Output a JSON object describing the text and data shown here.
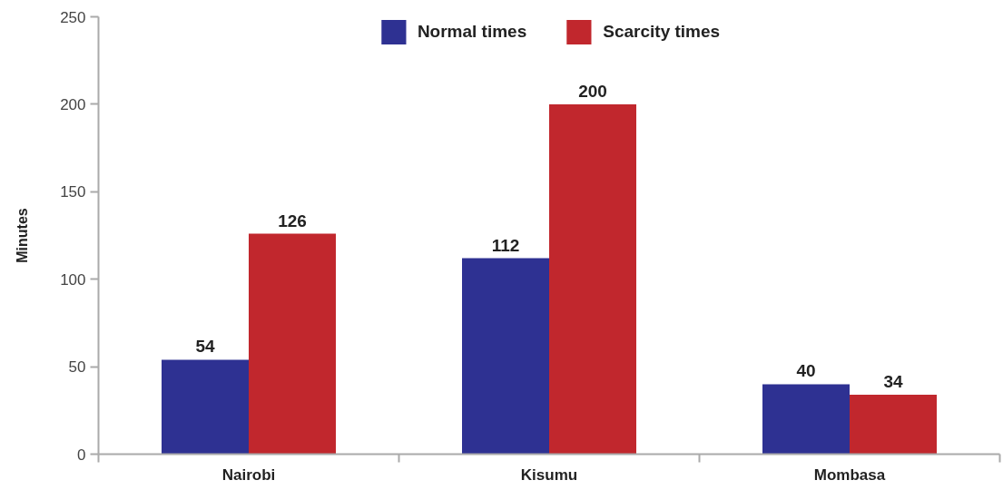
{
  "chart_data": {
    "type": "bar",
    "categories": [
      "Nairobi",
      "Kisumu",
      "Mombasa"
    ],
    "series": [
      {
        "name": "Normal times",
        "color": "#2e3192",
        "values": [
          54,
          112,
          40
        ]
      },
      {
        "name": "Scarcity times",
        "color": "#c1272d",
        "values": [
          126,
          200,
          34
        ]
      }
    ],
    "ylabel": "Minutes",
    "ylim": [
      0,
      250
    ],
    "yticks": [
      0,
      50,
      100,
      150,
      200,
      250
    ],
    "data_labels": true,
    "legend": "top",
    "grid": false
  }
}
